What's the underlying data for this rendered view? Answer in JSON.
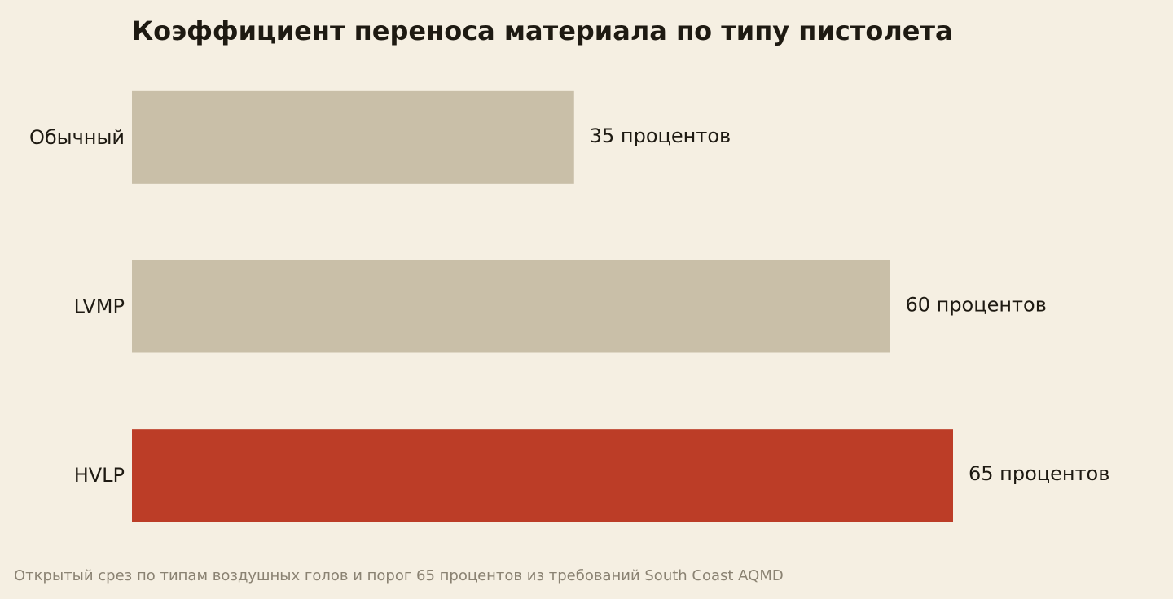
{
  "chart_data": {
    "type": "hbar",
    "title": "Коэффициент переноса материала по типу пистолета",
    "categories": [
      "Обычный",
      "LVMP",
      "HVLP"
    ],
    "values": [
      35,
      60,
      65
    ],
    "value_labels": [
      "35 процентов",
      "60 процентов",
      "65 процентов"
    ],
    "colors": [
      "#c9bfa8",
      "#c9bfa8",
      "#bc3d27"
    ],
    "note": "Открытый срез по типам воздушных голов и порог 65 процентов из требований South Coast AQMD"
  }
}
